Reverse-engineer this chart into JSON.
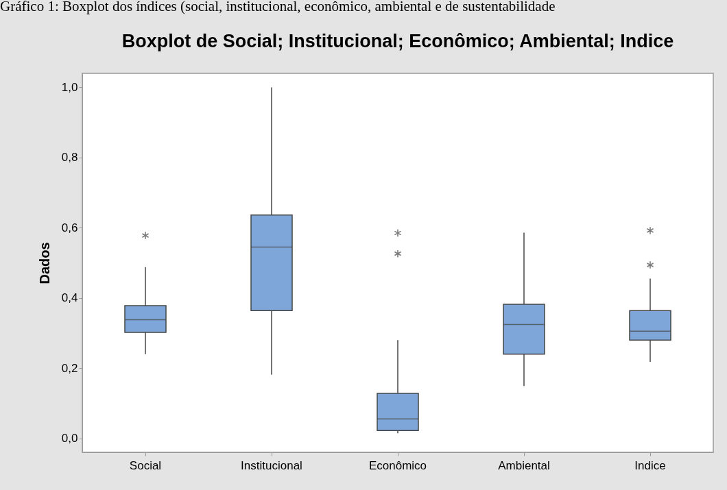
{
  "chart_data": {
    "type": "box",
    "title": "Boxplot de Social; Institucional; Econômico; Ambiental; Indice",
    "ylabel": "Dados",
    "annotations": [
      "Gráfico 1: Boxplot dos índices (social, institucional, econômico, ambiental e de sustentabilidade"
    ],
    "categories": [
      "Social",
      "Institucional",
      "Econômico",
      "Ambiental",
      "Indice"
    ],
    "color": "#7ea6d8",
    "boxes": [
      {
        "low": 0.24,
        "q1": 0.302,
        "median": 0.338,
        "q3": 0.378,
        "high": 0.488,
        "outliers": [
          0.578
        ]
      },
      {
        "low": 0.181,
        "q1": 0.364,
        "median": 0.545,
        "q3": 0.636,
        "high": 1.0
      },
      {
        "low": 0.014,
        "q1": 0.022,
        "median": 0.055,
        "q3": 0.128,
        "high": 0.28,
        "outliers": [
          0.585,
          0.526
        ]
      },
      {
        "low": 0.149,
        "q1": 0.24,
        "median": 0.324,
        "q3": 0.382,
        "high": 0.586
      },
      {
        "low": 0.218,
        "q1": 0.28,
        "median": 0.305,
        "q3": 0.364,
        "high": 0.455,
        "outliers": [
          0.592,
          0.494
        ]
      }
    ],
    "ylim": [
      -0.04,
      1.04
    ],
    "yticks": [
      {
        "value": 0,
        "label": "0,0"
      },
      {
        "value": 0.2,
        "label": "0,2"
      },
      {
        "value": 0.4,
        "label": "0,4"
      },
      {
        "value": 0.6,
        "label": "0,6"
      },
      {
        "value": 0.8,
        "label": "0,8"
      },
      {
        "value": 1.0,
        "label": "1,0"
      }
    ],
    "grid": false
  }
}
